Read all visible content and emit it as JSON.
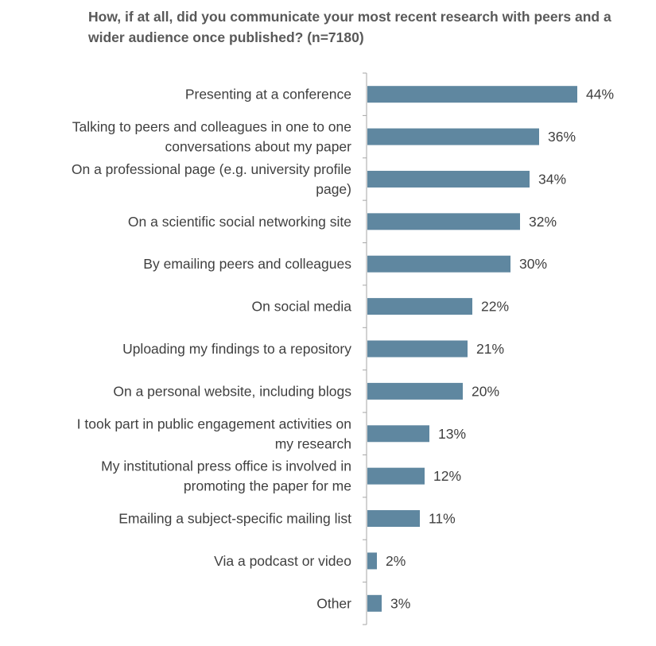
{
  "chart_data": {
    "type": "bar",
    "orientation": "horizontal",
    "title": "How, if at all, did you communicate your most recent research with peers and a wider audience once published? (n=7180)",
    "categories": [
      [
        "Presenting at a conference"
      ],
      [
        "Talking to peers and colleagues in one to one",
        "conversations about my paper"
      ],
      [
        "On a professional page (e.g. university profile",
        "page)"
      ],
      [
        "On a scientific social networking site"
      ],
      [
        "By emailing peers and colleagues"
      ],
      [
        "On social media"
      ],
      [
        "Uploading my findings to a repository"
      ],
      [
        "On a personal website, including blogs"
      ],
      [
        "I took part in public engagement activities on",
        "my research"
      ],
      [
        "My institutional press office is involved in",
        "promoting the paper for me"
      ],
      [
        "Emailing a subject-specific mailing list"
      ],
      [
        "Via a podcast or video"
      ],
      [
        "Other"
      ]
    ],
    "values": [
      44,
      36,
      34,
      32,
      30,
      22,
      21,
      20,
      13,
      12,
      11,
      2,
      3
    ],
    "value_labels": [
      "44%",
      "36%",
      "34%",
      "32%",
      "30%",
      "22%",
      "21%",
      "20%",
      "13%",
      "12%",
      "11%",
      "2%",
      "3%"
    ],
    "unit": "%",
    "bar_color": "#5f87a0",
    "grid": false,
    "legend": "none"
  }
}
